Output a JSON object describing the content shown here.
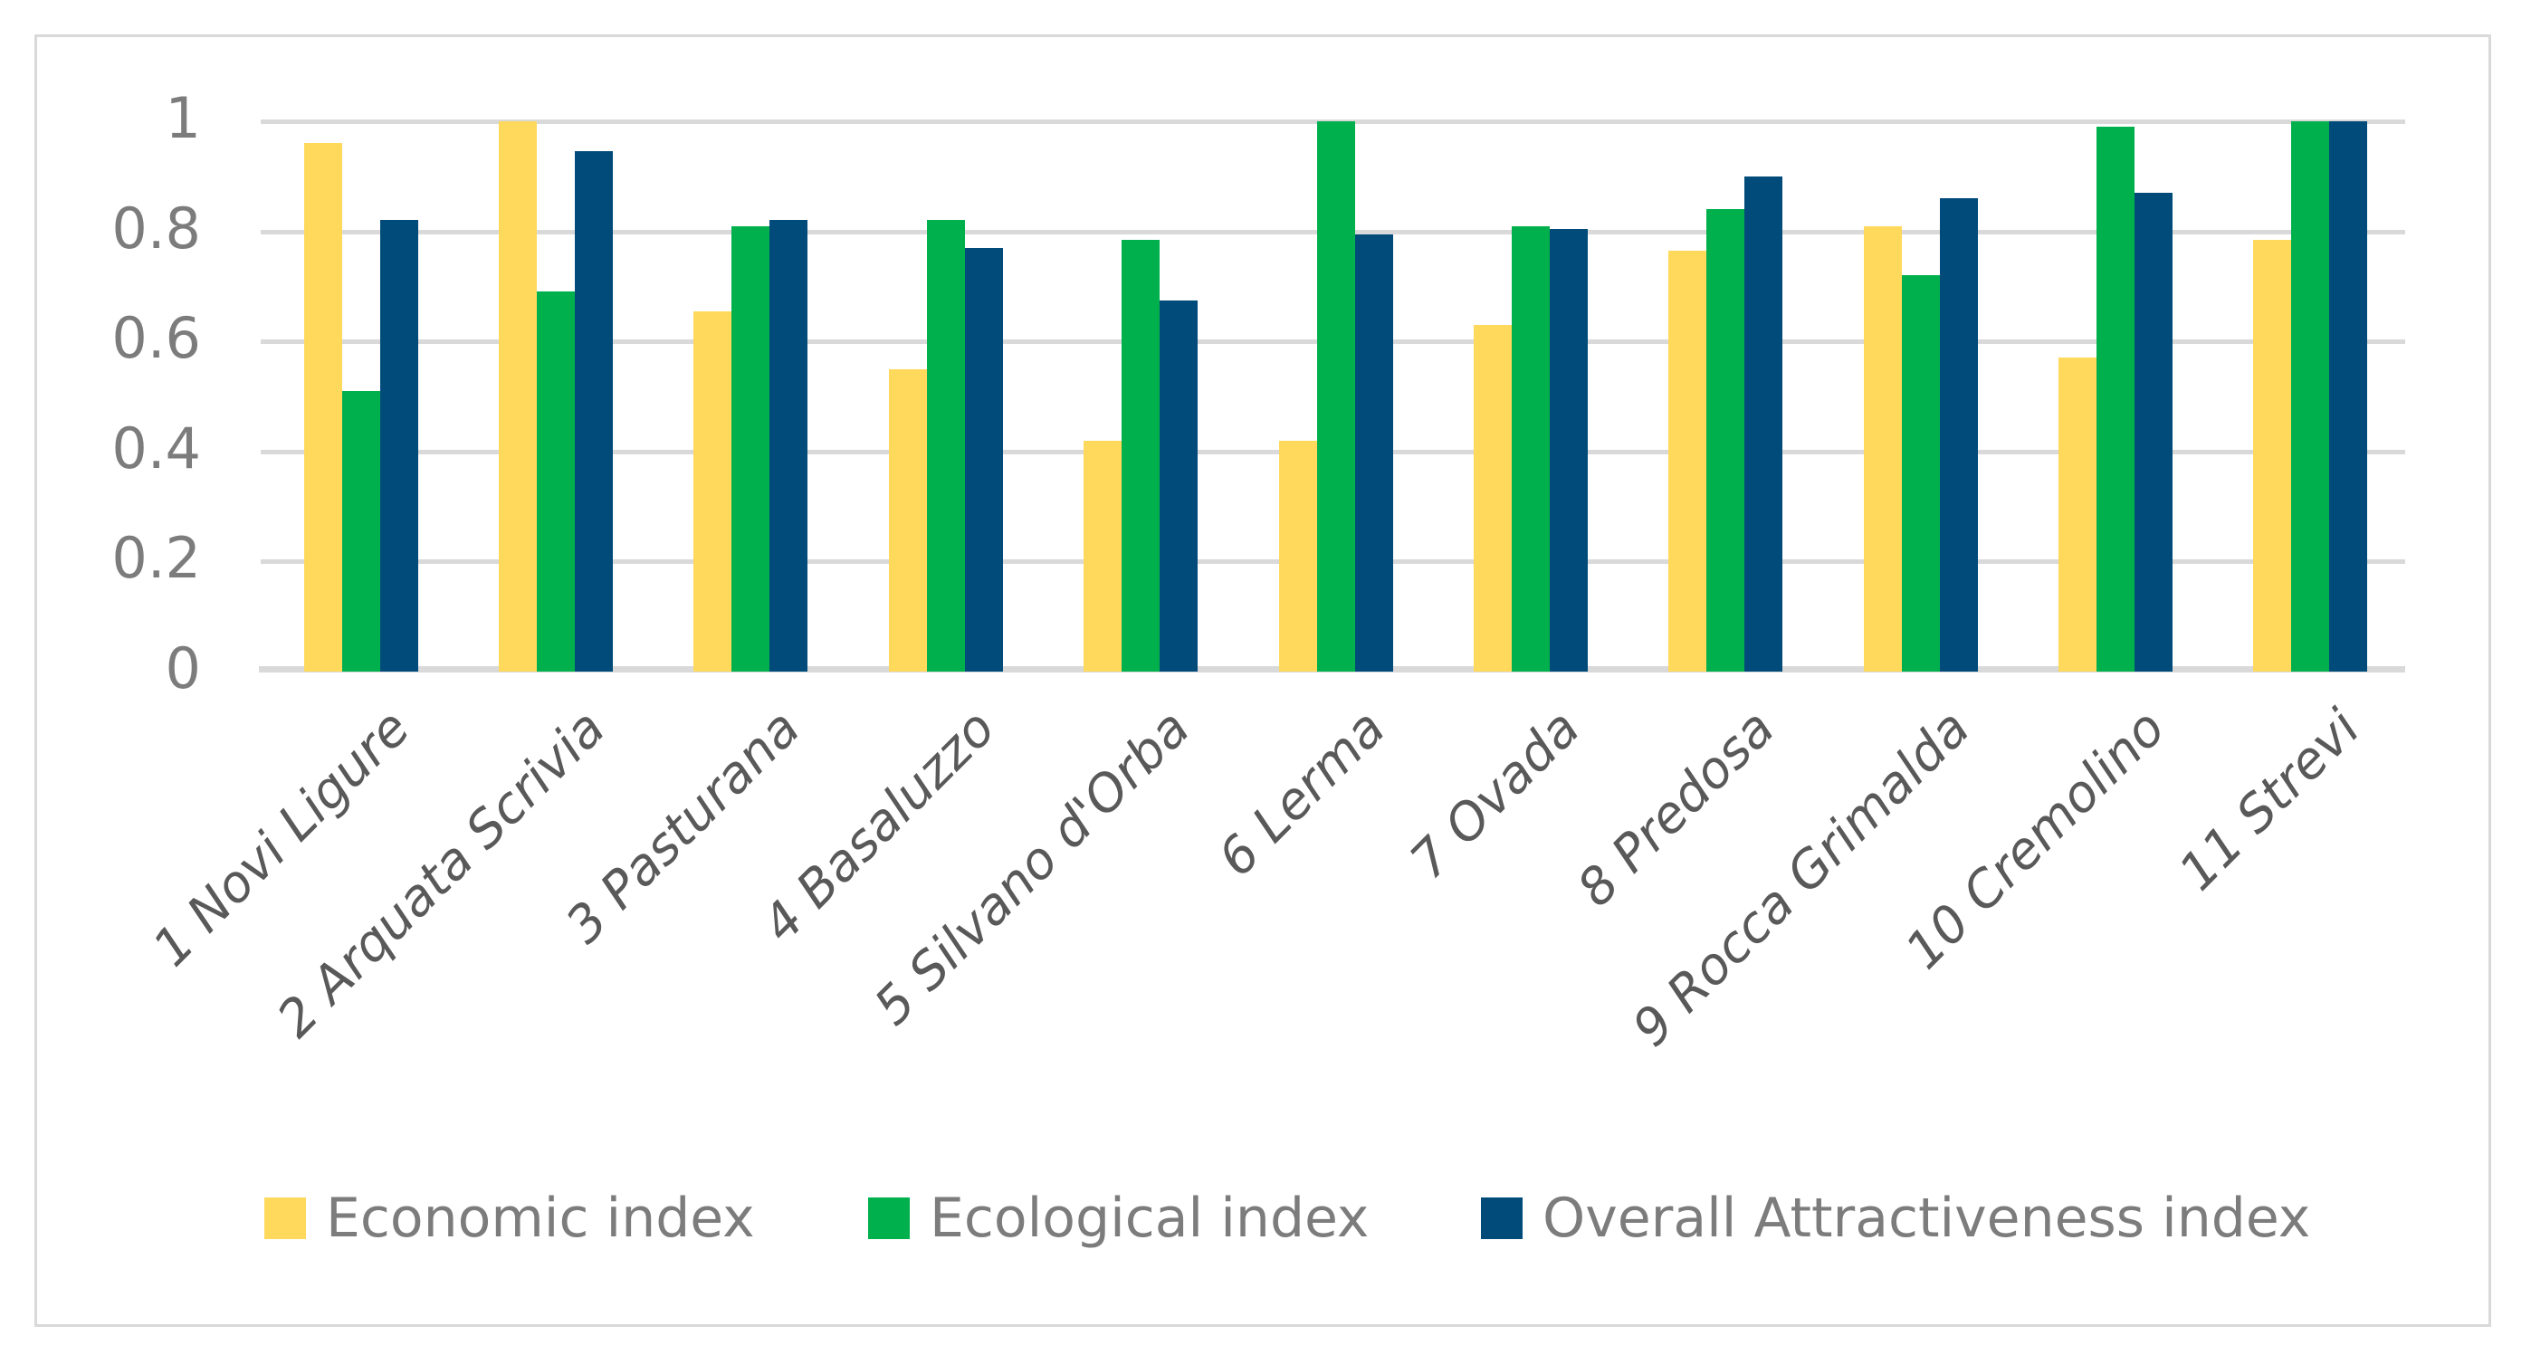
{
  "figure": {
    "background_color": "#FFFFFF",
    "border_color": "#D9D9D9",
    "gridline_color": "#D9D9D9",
    "axis_line_color": "#D9D9D9",
    "ytick_text_color": "#7C7C7C",
    "xlabel_text_color": "#595959",
    "legend_text_color": "#7C7C7C"
  },
  "chart_data": {
    "type": "bar",
    "title": "",
    "xlabel": "",
    "ylabel": "",
    "ylim": [
      0,
      1
    ],
    "grid": true,
    "legend_position": "bottom",
    "yticks": [
      {
        "value": 0,
        "label": "0"
      },
      {
        "value": 0.2,
        "label": "0.2"
      },
      {
        "value": 0.4,
        "label": "0.4"
      },
      {
        "value": 0.6,
        "label": "0.6"
      },
      {
        "value": 0.8,
        "label": "0.8"
      },
      {
        "value": 1,
        "label": "1"
      }
    ],
    "categories": [
      "1 Novi Ligure",
      "2 Arquata Scrivia",
      "3 Pasturana",
      "4 Basaluzzo",
      "5 Silvano d'Orba",
      "6 Lerma",
      "7 Ovada",
      "8 Predosa",
      "9 Rocca Grimalda",
      "10 Cremolino",
      "11 Strevi"
    ],
    "series": [
      {
        "name": "Economic index",
        "color": "#FFD95C",
        "values": [
          0.96,
          1.0,
          0.655,
          0.55,
          0.42,
          0.42,
          0.63,
          0.765,
          0.81,
          0.57,
          0.785
        ]
      },
      {
        "name": "Ecological index",
        "color": "#00B04C",
        "values": [
          0.51,
          0.69,
          0.81,
          0.82,
          0.785,
          1.0,
          0.81,
          0.84,
          0.72,
          0.99,
          1.0
        ]
      },
      {
        "name": "Overall Attractiveness index",
        "color": "#004B7A",
        "values": [
          0.82,
          0.945,
          0.82,
          0.77,
          0.675,
          0.795,
          0.805,
          0.9,
          0.86,
          0.87,
          1.0
        ]
      }
    ]
  }
}
